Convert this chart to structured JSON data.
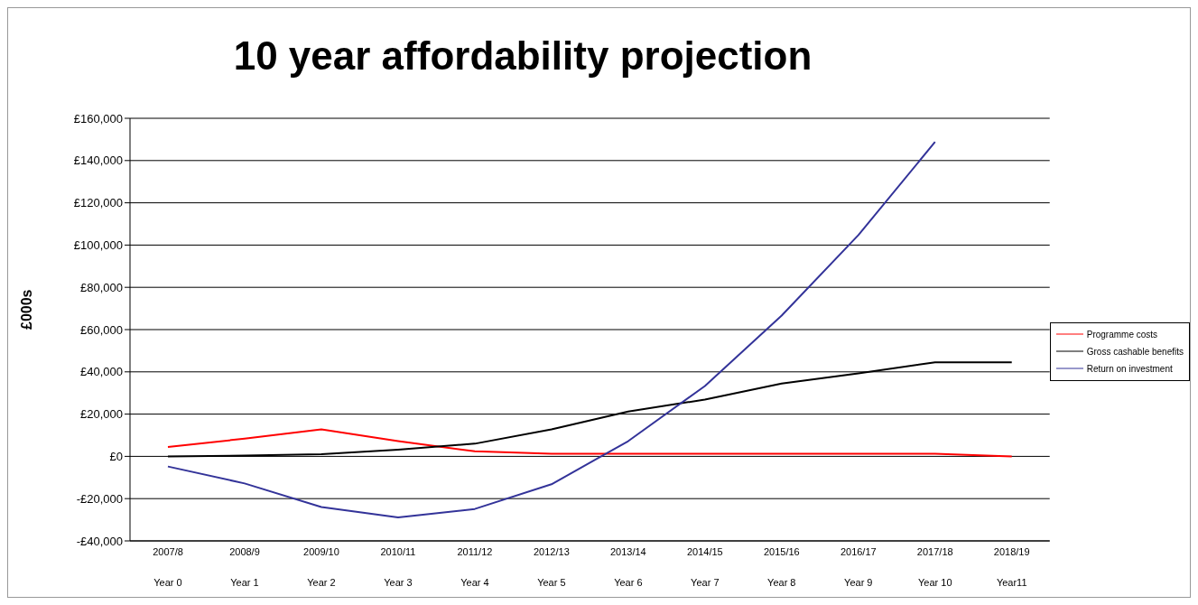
{
  "chart_data": {
    "type": "line",
    "title": "10 year affordability projection",
    "ylabel": "£000s",
    "categories": [
      "2007/8\nYear 0",
      "2008/9\nYear 1",
      "2009/10\nYear 2",
      "2010/11\nYear 3",
      "2011/12\nYear 4",
      "2012/13\nYear 5",
      "2013/14\nYear 6",
      "2014/15\nYear 7",
      "2015/16\nYear 8",
      "2016/17\nYear 9",
      "2017/18\nYear 10",
      "2018/19\nYear11"
    ],
    "series": [
      {
        "name": "Programme costs",
        "color": "#ff0000",
        "values": [
          4400,
          8400,
          12800,
          7200,
          2400,
          1200,
          1200,
          1200,
          1200,
          1200,
          1200,
          0
        ]
      },
      {
        "name": "Gross cashable benefits",
        "color": "#000000",
        "values": [
          0,
          400,
          1000,
          3200,
          6000,
          12800,
          21200,
          26900,
          34500,
          39300,
          44500,
          44500
        ]
      },
      {
        "name": "Return on investment",
        "color": "#333399",
        "values": [
          -4800,
          -12800,
          -24000,
          -28900,
          -24900,
          -13200,
          7200,
          33300,
          66600,
          104700,
          148800,
          null
        ]
      }
    ],
    "ylim": [
      -40000,
      160000
    ],
    "yticks": [
      {
        "value": -40000,
        "label": "-£40,000"
      },
      {
        "value": -20000,
        "label": "-£20,000"
      },
      {
        "value": 0,
        "label": "£0"
      },
      {
        "value": 20000,
        "label": "£20,000"
      },
      {
        "value": 40000,
        "label": "£40,000"
      },
      {
        "value": 60000,
        "label": "£60,000"
      },
      {
        "value": 80000,
        "label": "£80,000"
      },
      {
        "value": 100000,
        "label": "£100,000"
      },
      {
        "value": 120000,
        "label": "£120,000"
      },
      {
        "value": 140000,
        "label": "£140,000"
      },
      {
        "value": 160000,
        "label": "£160,000"
      }
    ],
    "grid": "y",
    "legend": "right",
    "marker": "none",
    "line_style": "solid"
  }
}
